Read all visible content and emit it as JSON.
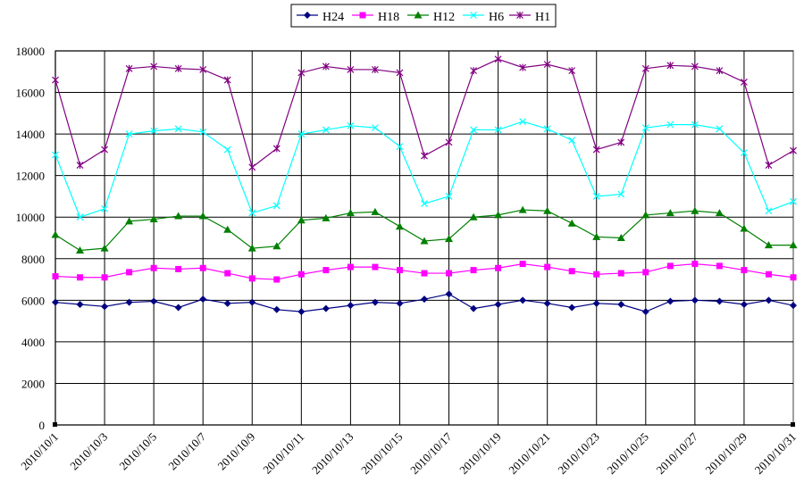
{
  "chart_data": {
    "type": "line",
    "title": "",
    "xlabel": "",
    "ylabel": "",
    "ylim": [
      0,
      18000
    ],
    "yticks": [
      "0",
      "2000",
      "4000",
      "6000",
      "8000",
      "10000",
      "12000",
      "14000",
      "16000",
      "18000"
    ],
    "ytick_values": [
      0,
      2000,
      4000,
      6000,
      8000,
      10000,
      12000,
      14000,
      16000,
      18000
    ],
    "grid": true,
    "legend_position": "top",
    "xtick_labels": [
      "2010/10/1",
      "2010/10/3",
      "2010/10/5",
      "2010/10/7",
      "2010/10/9",
      "2010/10/11",
      "2010/10/13",
      "2010/10/15",
      "2010/10/17",
      "2010/10/19",
      "2010/10/21",
      "2010/10/23",
      "2010/10/25",
      "2010/10/27",
      "2010/10/29",
      "2010/10/31"
    ],
    "x": [
      "2010/10/1",
      "2010/10/2",
      "2010/10/3",
      "2010/10/4",
      "2010/10/5",
      "2010/10/6",
      "2010/10/7",
      "2010/10/8",
      "2010/10/9",
      "2010/10/10",
      "2010/10/11",
      "2010/10/12",
      "2010/10/13",
      "2010/10/14",
      "2010/10/15",
      "2010/10/16",
      "2010/10/17",
      "2010/10/18",
      "2010/10/19",
      "2010/10/20",
      "2010/10/21",
      "2010/10/22",
      "2010/10/23",
      "2010/10/24",
      "2010/10/25",
      "2010/10/26",
      "2010/10/27",
      "2010/10/28",
      "2010/10/29",
      "2010/10/30",
      "2010/10/31"
    ],
    "series": [
      {
        "name": "H24",
        "color": "#000080",
        "marker": "diamond",
        "values": [
          5900,
          5800,
          5700,
          5900,
          5950,
          5650,
          6050,
          5850,
          5900,
          5550,
          5450,
          5600,
          5750,
          5900,
          5850,
          6050,
          6300,
          5600,
          5800,
          6000,
          5850,
          5650,
          5850,
          5800,
          5450,
          5950,
          6000,
          5950,
          5800,
          6000,
          5750
        ]
      },
      {
        "name": "H18",
        "color": "#FF00FF",
        "marker": "square",
        "values": [
          7150,
          7100,
          7100,
          7350,
          7550,
          7500,
          7550,
          7300,
          7050,
          7000,
          7250,
          7450,
          7600,
          7600,
          7450,
          7300,
          7300,
          7450,
          7550,
          7750,
          7600,
          7400,
          7250,
          7300,
          7350,
          7650,
          7750,
          7650,
          7450,
          7250,
          7100
        ]
      },
      {
        "name": "H12",
        "color": "#008000",
        "marker": "triangle",
        "values": [
          9150,
          8400,
          8500,
          9800,
          9900,
          10050,
          10050,
          9400,
          8500,
          8600,
          9850,
          9950,
          10200,
          10250,
          9550,
          8850,
          8950,
          10000,
          10100,
          10350,
          10300,
          9700,
          9050,
          9000,
          10100,
          10200,
          10300,
          10200,
          9450,
          8650,
          8650
        ]
      },
      {
        "name": "H6",
        "color": "#00FFFF",
        "marker": "x",
        "values": [
          13000,
          10000,
          10400,
          14000,
          14150,
          14250,
          14100,
          13250,
          10200,
          10550,
          14000,
          14200,
          14400,
          14300,
          13400,
          10650,
          11000,
          14200,
          14200,
          14600,
          14250,
          13700,
          11000,
          11100,
          14300,
          14450,
          14450,
          14250,
          13100,
          10300,
          10750
        ]
      },
      {
        "name": "H1",
        "color": "#800080",
        "marker": "star",
        "values": [
          16600,
          12500,
          13250,
          17150,
          17250,
          17150,
          17100,
          16600,
          12400,
          13300,
          16950,
          17250,
          17100,
          17100,
          16950,
          12950,
          13600,
          17050,
          17600,
          17200,
          17350,
          17050,
          13250,
          13600,
          17150,
          17300,
          17250,
          17050,
          16500,
          12500,
          13200
        ]
      }
    ]
  }
}
